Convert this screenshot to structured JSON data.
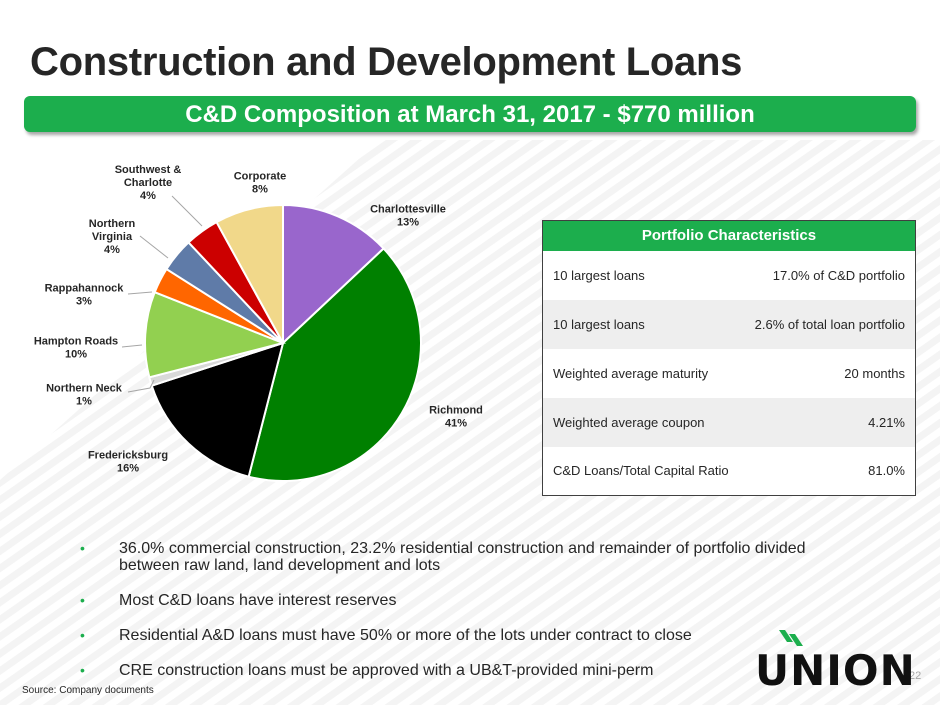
{
  "title": "Construction and Development Loans",
  "banner": "C&D Composition at March 31, 2017 - $770 million",
  "chart_data": {
    "type": "pie",
    "title": "C&D Composition at March 31, 2017 - $770 million",
    "slices": [
      {
        "label_lines": [
          "Charlottesville",
          "13%"
        ],
        "value": 13,
        "color": "#9966cc"
      },
      {
        "label_lines": [
          "Richmond",
          "41%"
        ],
        "value": 41,
        "color": "#008000"
      },
      {
        "label_lines": [
          "Fredericksburg",
          "16%"
        ],
        "value": 16,
        "color": "#000000"
      },
      {
        "label_lines": [
          "Northern Neck",
          "1%"
        ],
        "value": 1,
        "color": "#d9d9d9"
      },
      {
        "label_lines": [
          "Hampton Roads",
          "10%"
        ],
        "value": 10,
        "color": "#92d050"
      },
      {
        "label_lines": [
          "Rappahannock",
          "3%"
        ],
        "value": 3,
        "color": "#ff6600"
      },
      {
        "label_lines": [
          "Northern",
          "Virginia",
          "4%"
        ],
        "value": 4,
        "color": "#5f7ba8"
      },
      {
        "label_lines": [
          "Southwest &",
          "Charlotte",
          "4%"
        ],
        "value": 4,
        "color": "#cc0000"
      },
      {
        "label_lines": [
          "Corporate",
          "8%"
        ],
        "value": 8,
        "color": "#f1d88a"
      }
    ]
  },
  "portfolio": {
    "header": "Portfolio Characteristics",
    "rows": [
      {
        "label": "10 largest loans",
        "value": "17.0% of C&D portfolio"
      },
      {
        "label": "10 largest loans",
        "value": "2.6% of total loan portfolio"
      },
      {
        "label": "Weighted average maturity",
        "value": "20 months"
      },
      {
        "label": "Weighted average coupon",
        "value": "4.21%"
      },
      {
        "label": "C&D Loans/Total Capital Ratio",
        "value": "81.0%"
      }
    ]
  },
  "bullets": [
    "36.0% commercial construction, 23.2% residential construction and remainder of portfolio divided between raw land, land development and lots",
    "Most C&D loans have interest reserves",
    "Residential A&D loans must have 50% or more of the lots under contract to close",
    "CRE construction loans must be approved with a UB&T-provided mini-perm"
  ],
  "source": "Source: Company documents",
  "page_number": "22",
  "logo": {
    "text": "UNION",
    "color": "#1cae4d"
  }
}
